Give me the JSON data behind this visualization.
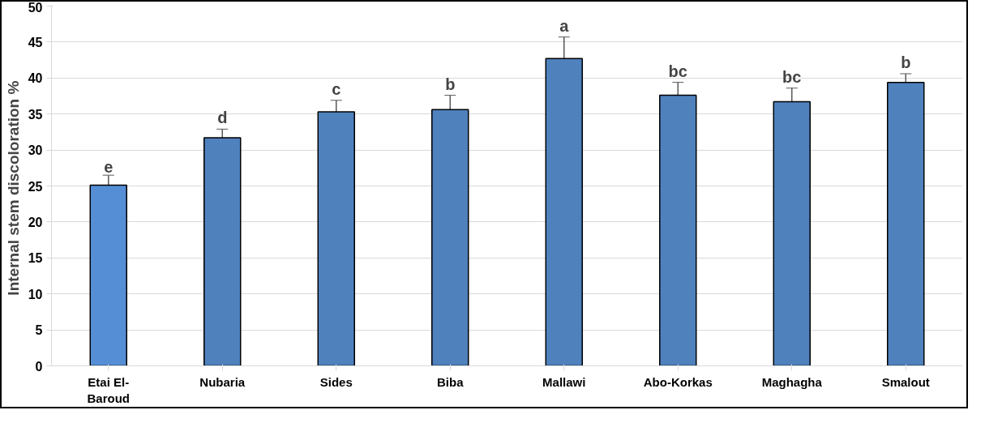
{
  "chart_data": {
    "type": "bar",
    "ylabel": "Internal stem discoloration  %",
    "categories": [
      "Etai El-Baroud",
      "Nubaria",
      "Sides",
      "Biba",
      "Mallawi",
      "Abo-Korkas",
      "Maghagha",
      "Smalout"
    ],
    "values": [
      25.1,
      31.7,
      35.3,
      35.6,
      42.7,
      37.6,
      36.7,
      39.4
    ],
    "errors": [
      1.4,
      1.2,
      1.6,
      2.0,
      3.0,
      1.8,
      1.9,
      1.2
    ],
    "colors": [
      "#558ed5",
      "#4f81bd",
      "#4f81bd",
      "#4f81bd",
      "#4f81bd",
      "#4f81bd",
      "#4f81bd",
      "#4f81bd"
    ],
    "ylim": [
      0,
      50
    ],
    "yticks": [
      0,
      5,
      10,
      15,
      20,
      25,
      30,
      35,
      40,
      45,
      50
    ],
    "grid": "y",
    "annotations": [
      {
        "text": "e",
        "x": "Etai El-Baroud",
        "y": 26.5
      },
      {
        "text": "d",
        "x": "Nubaria",
        "y": 32.9
      },
      {
        "text": "c",
        "x": "Sides",
        "y": 36.9
      },
      {
        "text": "b",
        "x": "Biba",
        "y": 37.6
      },
      {
        "text": "a",
        "x": "Mallawi",
        "y": 45.7
      },
      {
        "text": "bc",
        "x": "Abo-Korkas",
        "y": 39.4
      },
      {
        "text": "bc",
        "x": "Maghagha",
        "y": 38.6
      },
      {
        "text": "b",
        "x": "Smalout",
        "y": 40.6
      }
    ]
  }
}
